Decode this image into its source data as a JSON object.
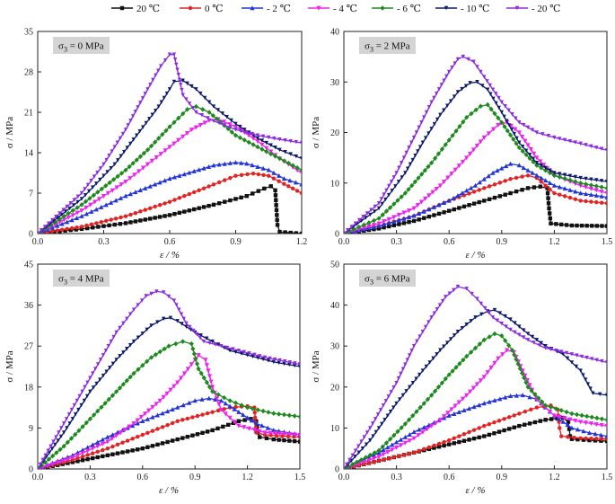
{
  "figure": {
    "legend": [
      {
        "label": "20 ℃",
        "color": "#111111"
      },
      {
        "label": "0 ℃",
        "color": "#e32222"
      },
      {
        "label": "- 2 ℃",
        "color": "#2435d8"
      },
      {
        "label": "- 4 ℃",
        "color": "#ee22ee"
      },
      {
        "label": "- 6 ℃",
        "color": "#1e8a1e"
      },
      {
        "label": "- 10 ℃",
        "color": "#0c1a6a"
      },
      {
        "label": "- 20 ℃",
        "color": "#8a2be2"
      }
    ]
  },
  "chart_data": [
    {
      "type": "line",
      "title": "σ3 = 0 MPa",
      "title_main": "σ",
      "title_sub": "3",
      "title_rest": " = 0 MPa",
      "xlabel": "ε / %",
      "ylabel": "σ / MPa",
      "xlim": [
        0,
        1.2
      ],
      "ylim": [
        0,
        35
      ],
      "xticks": [
        "0.0",
        "0.3",
        "0.6",
        "0.9",
        "1.2"
      ],
      "yticks": [
        "0",
        "7",
        "14",
        "21",
        "28",
        "35"
      ],
      "series": [
        {
          "name": "20 ℃",
          "x": [
            0,
            0.2,
            0.4,
            0.6,
            0.8,
            0.95,
            1.03,
            1.06,
            1.08,
            1.09,
            1.1,
            1.2
          ],
          "y": [
            0,
            0.8,
            1.8,
            3.2,
            5,
            6.5,
            7.8,
            8.2,
            7.5,
            1.5,
            0.3,
            0
          ]
        },
        {
          "name": "0 ℃",
          "x": [
            0,
            0.2,
            0.4,
            0.6,
            0.8,
            0.9,
            0.98,
            1.05,
            1.12,
            1.2
          ],
          "y": [
            0,
            1.2,
            3,
            5.5,
            8.5,
            10,
            10.4,
            10,
            8.6,
            7
          ]
        },
        {
          "name": "- 2 ℃",
          "x": [
            0,
            0.2,
            0.4,
            0.6,
            0.8,
            0.9,
            0.95,
            1.05,
            1.12,
            1.2
          ],
          "y": [
            0,
            3,
            6.5,
            9.5,
            11.8,
            12.3,
            12.1,
            11,
            9.5,
            8.5
          ]
        },
        {
          "name": "- 4 ℃",
          "x": [
            0,
            0.2,
            0.4,
            0.5,
            0.6,
            0.7,
            0.78,
            0.82,
            0.9,
            1.0,
            1.1,
            1.2
          ],
          "y": [
            0,
            4,
            9,
            12,
            15,
            18,
            19.6,
            19.8,
            18.5,
            16,
            13,
            10.5
          ]
        },
        {
          "name": "- 6 ℃",
          "x": [
            0,
            0.2,
            0.4,
            0.5,
            0.6,
            0.68,
            0.72,
            0.78,
            0.9,
            1.0,
            1.1,
            1.2
          ],
          "y": [
            0,
            5,
            11,
            14.5,
            18.5,
            21.5,
            22,
            21,
            17,
            15,
            13,
            11
          ]
        },
        {
          "name": "- 10 ℃",
          "x": [
            0,
            0.2,
            0.35,
            0.45,
            0.55,
            0.6,
            0.62,
            0.66,
            0.72,
            0.8,
            0.9,
            1.0,
            1.1,
            1.2
          ],
          "y": [
            0,
            6,
            12,
            17,
            22,
            25,
            26.3,
            26.5,
            25,
            22,
            19,
            16.5,
            14.5,
            13
          ]
        },
        {
          "name": "- 20 ℃",
          "x": [
            0,
            0.2,
            0.3,
            0.4,
            0.5,
            0.56,
            0.6,
            0.62,
            0.66,
            0.72,
            0.8,
            0.9,
            1.0,
            1.1,
            1.2
          ],
          "y": [
            0,
            7,
            12,
            18,
            25,
            29,
            31,
            31,
            24,
            21,
            19.5,
            18,
            17,
            16.3,
            15.7
          ]
        }
      ]
    },
    {
      "type": "line",
      "title": "σ3 = 2 MPa",
      "title_main": "σ",
      "title_sub": "3",
      "title_rest": " = 2 MPa",
      "xlabel": "ε / %",
      "ylabel": "σ / MPa",
      "xlim": [
        0,
        1.5
      ],
      "ylim": [
        0,
        40
      ],
      "xticks": [
        "0.0",
        "0.3",
        "0.6",
        "0.9",
        "1.2",
        "1.5"
      ],
      "yticks": [
        "0",
        "10",
        "20",
        "30",
        "40"
      ],
      "series": [
        {
          "name": "20 ℃",
          "x": [
            0,
            0.2,
            0.4,
            0.6,
            0.8,
            0.95,
            1.05,
            1.12,
            1.16,
            1.17,
            1.18,
            1.3,
            1.5
          ],
          "y": [
            0,
            1,
            2.5,
            4.5,
            6.5,
            8,
            9,
            9.3,
            9,
            5,
            2,
            1.6,
            1.5
          ]
        },
        {
          "name": "0 ℃",
          "x": [
            0,
            0.2,
            0.4,
            0.6,
            0.8,
            0.95,
            1.05,
            1.1,
            1.2,
            1.35,
            1.5
          ],
          "y": [
            0,
            1.5,
            3.5,
            6.5,
            9,
            10.8,
            11.5,
            11,
            8,
            6.5,
            6
          ]
        },
        {
          "name": "- 2 ℃",
          "x": [
            0,
            0.2,
            0.4,
            0.6,
            0.75,
            0.85,
            0.95,
            1.0,
            1.1,
            1.2,
            1.35,
            1.5
          ],
          "y": [
            0,
            1.5,
            3.5,
            6.5,
            9.5,
            12,
            13.8,
            13.5,
            11.5,
            9.5,
            8,
            7.2
          ]
        },
        {
          "name": "- 4 ℃",
          "x": [
            0,
            0.2,
            0.4,
            0.55,
            0.7,
            0.8,
            0.88,
            0.93,
            1.0,
            1.1,
            1.2,
            1.35,
            1.5
          ],
          "y": [
            0,
            2,
            5,
            9.5,
            15,
            19,
            21.5,
            22,
            20,
            15,
            11.5,
            9.5,
            8
          ]
        },
        {
          "name": "- 6 ℃",
          "x": [
            0,
            0.2,
            0.35,
            0.5,
            0.6,
            0.7,
            0.78,
            0.82,
            0.9,
            1.0,
            1.1,
            1.2,
            1.35,
            1.5
          ],
          "y": [
            0,
            3,
            8,
            14,
            18.5,
            23,
            25.2,
            25.5,
            22,
            17,
            13.5,
            11.5,
            10,
            9
          ]
        },
        {
          "name": "- 10 ℃",
          "x": [
            0,
            0.2,
            0.35,
            0.45,
            0.55,
            0.65,
            0.72,
            0.76,
            0.82,
            0.9,
            1.0,
            1.1,
            1.2,
            1.35,
            1.5
          ],
          "y": [
            0,
            5,
            12,
            18,
            23.5,
            28,
            29.8,
            30,
            28.5,
            24,
            18,
            14,
            12,
            11,
            10.3
          ]
        },
        {
          "name": "- 20 ℃",
          "x": [
            0,
            0.2,
            0.3,
            0.4,
            0.5,
            0.6,
            0.65,
            0.68,
            0.74,
            0.8,
            0.9,
            1.0,
            1.1,
            1.2,
            1.35,
            1.5
          ],
          "y": [
            0,
            6,
            12,
            19,
            26,
            32,
            34.5,
            35,
            34,
            31,
            26,
            22,
            20,
            19,
            17.8,
            16.5
          ]
        }
      ]
    },
    {
      "type": "line",
      "title": "σ3 = 4 MPa",
      "title_main": "σ",
      "title_sub": "3",
      "title_rest": " = 4 MPa",
      "xlabel": "ε / %",
      "ylabel": "σ / MPa",
      "xlim": [
        0,
        1.5
      ],
      "ylim": [
        0,
        45
      ],
      "xticks": [
        "0.0",
        "0.3",
        "0.6",
        "0.9",
        "1.2",
        "1.5"
      ],
      "yticks": [
        "0",
        "9",
        "18",
        "27",
        "36",
        "45"
      ],
      "series": [
        {
          "name": "20 ℃",
          "x": [
            0,
            0.2,
            0.4,
            0.6,
            0.8,
            1.0,
            1.15,
            1.22,
            1.25,
            1.26,
            1.27,
            1.35,
            1.5
          ],
          "y": [
            0,
            1.5,
            3,
            4.5,
            6.5,
            8.5,
            10.5,
            11,
            10.5,
            8,
            7,
            6.5,
            6
          ]
        },
        {
          "name": "0 ℃",
          "x": [
            0,
            0.2,
            0.4,
            0.6,
            0.8,
            1.0,
            1.1,
            1.2,
            1.24,
            1.25,
            1.3,
            1.4,
            1.5
          ],
          "y": [
            0,
            2,
            4.5,
            7.5,
            10.5,
            12.5,
            13.5,
            13.8,
            13.5,
            8,
            7.5,
            7.2,
            7
          ]
        },
        {
          "name": "- 2 ℃",
          "x": [
            0,
            0.2,
            0.4,
            0.6,
            0.8,
            0.9,
            0.98,
            1.05,
            1.15,
            1.25,
            1.35,
            1.5
          ],
          "y": [
            0,
            3,
            7,
            10.5,
            13.5,
            15,
            15.5,
            15,
            12.5,
            10,
            8.5,
            7.5
          ]
        },
        {
          "name": "- 4 ℃",
          "x": [
            0,
            0.2,
            0.4,
            0.55,
            0.7,
            0.8,
            0.88,
            0.92,
            0.96,
            1.0,
            1.05,
            1.15,
            1.3,
            1.5
          ],
          "y": [
            0,
            2.5,
            6,
            10,
            15,
            19,
            23,
            25,
            24,
            18,
            13,
            9.5,
            8,
            7.5
          ]
        },
        {
          "name": "- 6 ℃",
          "x": [
            0,
            0.15,
            0.3,
            0.45,
            0.55,
            0.65,
            0.75,
            0.83,
            0.88,
            0.92,
            1.0,
            1.1,
            1.2,
            1.35,
            1.5
          ],
          "y": [
            0,
            5,
            11,
            17,
            21,
            24.5,
            27,
            28,
            27.5,
            22,
            17,
            15,
            13.5,
            12.2,
            11.5
          ]
        },
        {
          "name": "- 10 ℃",
          "x": [
            0,
            0.15,
            0.3,
            0.45,
            0.55,
            0.65,
            0.72,
            0.76,
            0.8,
            0.9,
            1.0,
            1.1,
            1.2,
            1.35,
            1.5
          ],
          "y": [
            0,
            8,
            17,
            24,
            28,
            31.5,
            33,
            33.2,
            32.5,
            30,
            28,
            26,
            25,
            23.5,
            22.5
          ]
        },
        {
          "name": "- 20 ℃",
          "x": [
            0,
            0.15,
            0.3,
            0.45,
            0.55,
            0.62,
            0.68,
            0.72,
            0.78,
            0.85,
            0.95,
            1.05,
            1.15,
            1.3,
            1.5
          ],
          "y": [
            0,
            10,
            20,
            30,
            35,
            38,
            39,
            38.8,
            37,
            32,
            28,
            27,
            26,
            24.5,
            23
          ]
        }
      ]
    },
    {
      "type": "line",
      "title": "σ3 = 6 MPa",
      "title_main": "σ",
      "title_sub": "3",
      "title_rest": " = 6 MPa",
      "xlabel": "ε / %",
      "ylabel": "σ / MPa",
      "xlim": [
        0,
        1.5
      ],
      "ylim": [
        0,
        50
      ],
      "xticks": [
        "0.0",
        "0.3",
        "0.6",
        "0.9",
        "1.2",
        "1.5"
      ],
      "yticks": [
        "0",
        "10",
        "20",
        "30",
        "40",
        "50"
      ],
      "series": [
        {
          "name": "20 ℃",
          "x": [
            0,
            0.2,
            0.4,
            0.6,
            0.8,
            1.0,
            1.15,
            1.25,
            1.28,
            1.29,
            1.3,
            1.4,
            1.5
          ],
          "y": [
            0,
            2,
            4,
            6,
            8,
            10.5,
            12,
            12.5,
            11.5,
            8,
            7.3,
            7,
            6.8
          ]
        },
        {
          "name": "0 ℃",
          "x": [
            0,
            0.2,
            0.4,
            0.6,
            0.8,
            1.0,
            1.1,
            1.18,
            1.22,
            1.23,
            1.24,
            1.35,
            1.5
          ],
          "y": [
            0,
            2,
            4,
            7,
            10.5,
            13.5,
            15,
            15.5,
            14.5,
            10,
            8,
            7.5,
            7.3
          ]
        },
        {
          "name": "- 2 ℃",
          "x": [
            0,
            0.2,
            0.4,
            0.6,
            0.8,
            0.95,
            1.02,
            1.1,
            1.2,
            1.3,
            1.4,
            1.5
          ],
          "y": [
            0,
            4,
            9,
            13,
            16,
            17.8,
            18,
            17,
            13,
            10,
            8.8,
            8
          ]
        },
        {
          "name": "- 4 ℃",
          "x": [
            0,
            0.2,
            0.4,
            0.55,
            0.7,
            0.8,
            0.88,
            0.93,
            0.97,
            1.02,
            1.1,
            1.2,
            1.35,
            1.5
          ],
          "y": [
            0,
            3,
            7.5,
            12,
            18,
            22.5,
            27,
            29,
            28.5,
            24,
            17,
            13,
            11.5,
            10.5
          ]
        },
        {
          "name": "- 6 ℃",
          "x": [
            0,
            0.2,
            0.35,
            0.5,
            0.6,
            0.7,
            0.8,
            0.86,
            0.9,
            0.96,
            1.05,
            1.15,
            1.3,
            1.5
          ],
          "y": [
            0,
            4.5,
            11,
            18,
            23,
            27.5,
            31.5,
            33,
            32.5,
            29,
            20,
            15.5,
            13.5,
            12
          ]
        },
        {
          "name": "- 10 ℃",
          "x": [
            0,
            0.15,
            0.3,
            0.45,
            0.55,
            0.65,
            0.75,
            0.82,
            0.86,
            0.95,
            1.05,
            1.15,
            1.25,
            1.35,
            1.42,
            1.5
          ],
          "y": [
            0,
            7,
            16,
            24,
            29,
            33.5,
            37,
            38.5,
            38.8,
            36.5,
            33,
            30,
            28,
            24,
            18.5,
            18
          ]
        },
        {
          "name": "- 20 ℃",
          "x": [
            0,
            0.15,
            0.3,
            0.4,
            0.5,
            0.58,
            0.65,
            0.7,
            0.76,
            0.85,
            0.95,
            1.05,
            1.15,
            1.3,
            1.5
          ],
          "y": [
            0,
            10,
            21,
            30,
            37,
            42,
            44.5,
            44,
            41.5,
            37,
            34,
            31.5,
            29.5,
            28,
            26
          ]
        }
      ]
    }
  ]
}
